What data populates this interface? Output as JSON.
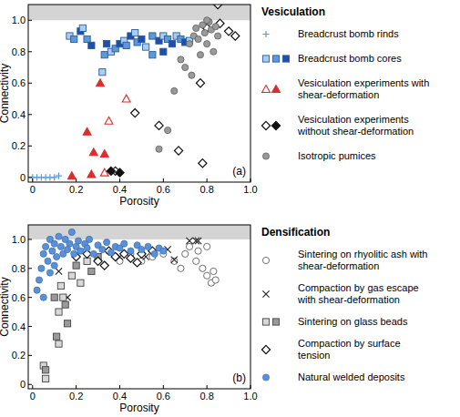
{
  "chart_data": [
    {
      "type": "scatter",
      "title": "(a)",
      "x_label": "Porosity",
      "y_label": "Connectivity",
      "xlim": [
        -0.02,
        1.0
      ],
      "ylim": [
        -0.03,
        1.1
      ],
      "xticks": [
        0,
        0.2,
        0.4,
        0.6,
        0.8,
        {
          "value": 1,
          "label": "1.0"
        }
      ],
      "yticks": [
        0,
        0.2,
        0.4,
        0.6,
        0.8,
        {
          "value": 1,
          "label": "1.0"
        }
      ],
      "legend": "right",
      "legend_title": "Vesiculation",
      "series": [
        {
          "name": "Breadcrust bomb rinds",
          "marker": "plus",
          "color": "#5b9bd5",
          "x": [
            0.0,
            0.02,
            0.04,
            0.06,
            0.08,
            0.1,
            0.12
          ],
          "values": [
            0,
            0,
            0,
            0,
            0,
            0,
            0.01
          ]
        },
        {
          "name": "Breadcrust bomb cores",
          "marker": "square",
          "color": "#2a5a9a",
          "x": [
            0.17,
            0.19,
            0.22,
            0.23,
            0.25,
            0.27,
            0.32,
            0.33,
            0.34,
            0.36,
            0.38,
            0.4,
            0.42,
            0.43,
            0.45,
            0.47,
            0.48,
            0.5,
            0.52,
            0.55,
            0.58,
            0.6,
            0.62,
            0.64,
            0.66,
            0.68,
            0.7,
            0.72,
            0.55,
            0.6
          ],
          "values": [
            0.9,
            0.88,
            0.93,
            0.95,
            0.88,
            0.84,
            0.67,
            0.78,
            0.85,
            0.8,
            0.82,
            0.85,
            0.87,
            0.84,
            0.9,
            0.92,
            0.86,
            0.88,
            0.83,
            0.9,
            0.87,
            0.9,
            0.88,
            0.85,
            0.9,
            0.88,
            0.86,
            0.87,
            0.78,
            0.8
          ],
          "colors": [
            "#a9cdf0",
            "#5a9ad8",
            "#1f4fa8",
            "#a9cdf0",
            "#5a9ad8",
            "#1f4fa8",
            "#a9cdf0",
            "#5a9ad8",
            "#1f4fa8",
            "#a9cdf0",
            "#5a9ad8",
            "#1f4fa8",
            "#a9cdf0",
            "#5a9ad8",
            "#1f4fa8",
            "#a9cdf0",
            "#5a9ad8",
            "#1f4fa8",
            "#a9cdf0",
            "#5a9ad8",
            "#1f4fa8",
            "#a9cdf0",
            "#5a9ad8",
            "#1f4fa8",
            "#a9cdf0",
            "#5a9ad8",
            "#1f4fa8",
            "#a9cdf0",
            "#5a9ad8",
            "#1f4fa8"
          ]
        },
        {
          "name": "Vesiculation experiments with shear-deformation",
          "marker": "triangle",
          "color": "#e02b2b",
          "x": [
            0.33,
            0.18,
            0.25,
            0.27,
            0.28,
            0.31,
            0.33,
            0.35,
            0.43
          ],
          "values": [
            0.03,
            0.01,
            0.29,
            0.02,
            0.16,
            0.6,
            0.15,
            0.36,
            0.5
          ],
          "colors": [
            "#ffffff",
            "#e02b2b",
            "#e02b2b",
            "#e02b2b",
            "#e02b2b",
            "#e02b2b",
            "#e02b2b",
            "#ffffff",
            "#ffffff"
          ]
        },
        {
          "name": "Vesiculation experiments without shear-deformation",
          "marker": "diamond",
          "color": "#111111",
          "x": [
            0.38,
            0.36,
            0.4,
            0.47,
            0.58,
            0.67,
            0.77,
            0.78,
            0.8,
            0.85,
            0.86,
            0.9,
            0.93
          ],
          "values": [
            0.04,
            0.04,
            0.03,
            0.41,
            0.33,
            0.17,
            0.6,
            0.09,
            0.95,
            1.1,
            0.98,
            0.93,
            0.9
          ],
          "colors": [
            "#ffffff",
            "#111111",
            "#111111",
            "#ffffff",
            "#ffffff",
            "#ffffff",
            "#ffffff",
            "#ffffff",
            "#ffffff",
            "#ffffff",
            "#ffffff",
            "#ffffff",
            "#ffffff"
          ]
        },
        {
          "name": "Isotropic pumices",
          "marker": "circle",
          "color": "#9a9a9a",
          "x": [
            0.58,
            0.62,
            0.65,
            0.68,
            0.7,
            0.72,
            0.74,
            0.75,
            0.76,
            0.78,
            0.79,
            0.8,
            0.81,
            0.82,
            0.83,
            0.84,
            0.85,
            0.77,
            0.73,
            0.8
          ],
          "values": [
            0.18,
            0.3,
            0.55,
            0.75,
            0.7,
            0.85,
            0.9,
            0.95,
            0.88,
            0.97,
            0.92,
            0.85,
            0.99,
            0.94,
            0.8,
            0.96,
            0.9,
            0.78,
            0.65,
            1.0
          ]
        }
      ]
    },
    {
      "type": "scatter",
      "title": "(b)",
      "x_label": "Porosity",
      "y_label": "Connectivity",
      "xlim": [
        -0.02,
        1.0
      ],
      "ylim": [
        -0.03,
        1.1
      ],
      "xticks": [
        0,
        0.2,
        0.4,
        0.6,
        0.8,
        {
          "value": 1,
          "label": "1.0"
        }
      ],
      "yticks": [
        0,
        0.2,
        0.4,
        0.6,
        0.8,
        {
          "value": 1,
          "label": "1.0"
        }
      ],
      "legend": "right",
      "legend_title": "Densification",
      "series": [
        {
          "name": "Sintering on rhyolitic ash with shear-deformation",
          "marker": "circle",
          "color": "#333333",
          "x": [
            0.45,
            0.5,
            0.55,
            0.6,
            0.65,
            0.7,
            0.72,
            0.75,
            0.78,
            0.8,
            0.82,
            0.83,
            0.84,
            0.76,
            0.68,
            0.8,
            0.4,
            0.35
          ],
          "values": [
            0.9,
            0.85,
            0.88,
            0.9,
            0.85,
            0.9,
            0.95,
            0.85,
            0.8,
            0.75,
            0.7,
            0.78,
            0.72,
            0.92,
            0.8,
            0.95,
            0.85,
            0.92
          ],
          "colors": [
            "#ffffff",
            "#ffffff",
            "#ffffff",
            "#ffffff",
            "#ffffff",
            "#ffffff",
            "#ffffff",
            "#ffffff",
            "#ffffff",
            "#ffffff",
            "#ffffff",
            "#ffffff",
            "#ffffff",
            "#ffffff",
            "#ffffff",
            "#ffffff",
            "#ffffff",
            "#ffffff"
          ]
        },
        {
          "name": "Compaction by gas escape with shear-deformation",
          "marker": "x",
          "color": "#222222",
          "x": [
            0.12,
            0.16,
            0.3,
            0.4,
            0.52,
            0.72,
            0.75,
            0.76,
            0.62,
            0.65
          ],
          "values": [
            0.78,
            0.6,
            0.88,
            0.88,
            0.88,
            0.99,
            0.99,
            0.99,
            0.93,
            0.86
          ]
        },
        {
          "name": "Sintering on glass beads",
          "marker": "square",
          "color": "#444444",
          "x": [
            0.05,
            0.06,
            0.06,
            0.11,
            0.12,
            0.1,
            0.13,
            0.15,
            0.18,
            0.2,
            0.25,
            0.3,
            0.22,
            0.27,
            0.14,
            0.16,
            0.12
          ],
          "values": [
            0.13,
            0.1,
            0.04,
            0.33,
            0.28,
            0.6,
            0.68,
            0.55,
            0.75,
            0.82,
            0.85,
            0.88,
            0.7,
            0.78,
            0.6,
            0.42,
            0.5
          ],
          "colors": [
            "#d8d8d8",
            "#9a9a9a",
            "#d8d8d8",
            "#9a9a9a",
            "#d8d8d8",
            "#9a9a9a",
            "#d8d8d8",
            "#9a9a9a",
            "#d8d8d8",
            "#9a9a9a",
            "#d8d8d8",
            "#9a9a9a",
            "#d8d8d8",
            "#9a9a9a",
            "#d8d8d8",
            "#9a9a9a",
            "#d8d8d8"
          ]
        },
        {
          "name": "Compaction by surface tension",
          "marker": "diamond",
          "color": "#111111",
          "x": [
            0.2,
            0.25,
            0.3,
            0.35,
            0.38,
            0.42,
            0.45,
            0.5,
            0.55,
            0.48,
            0.33
          ],
          "values": [
            0.88,
            0.9,
            0.85,
            0.92,
            0.88,
            0.9,
            0.87,
            0.9,
            0.92,
            0.84,
            0.82
          ],
          "colors": [
            "#ffffff",
            "#ffffff",
            "#ffffff",
            "#ffffff",
            "#ffffff",
            "#ffffff",
            "#ffffff",
            "#ffffff",
            "#ffffff",
            "#ffffff",
            "#ffffff"
          ]
        },
        {
          "name": "Natural welded deposits",
          "marker": "circle",
          "color": "#5b8fd6",
          "x": [
            0.03,
            0.04,
            0.05,
            0.06,
            0.07,
            0.08,
            0.09,
            0.1,
            0.11,
            0.12,
            0.13,
            0.14,
            0.15,
            0.16,
            0.17,
            0.18,
            0.19,
            0.2,
            0.21,
            0.22,
            0.24,
            0.25,
            0.26,
            0.28,
            0.3,
            0.32,
            0.34,
            0.36,
            0.38,
            0.4,
            0.42,
            0.45,
            0.48,
            0.5,
            0.53,
            0.56,
            0.58,
            0.6,
            0.05,
            0.08,
            0.1,
            0.02
          ],
          "values": [
            0.72,
            0.8,
            0.9,
            0.95,
            0.85,
            1.0,
            0.92,
            0.97,
            0.88,
            1.02,
            0.95,
            0.9,
            1.0,
            0.93,
            0.97,
            1.05,
            0.9,
            0.95,
            0.99,
            0.92,
            0.97,
            0.94,
            1.0,
            0.9,
            0.96,
            0.93,
            0.98,
            0.91,
            0.95,
            0.94,
            0.97,
            0.92,
            0.96,
            0.93,
            0.95,
            0.9,
            0.94,
            0.92,
            0.6,
            0.77,
            0.82,
            0.65
          ]
        }
      ]
    }
  ]
}
